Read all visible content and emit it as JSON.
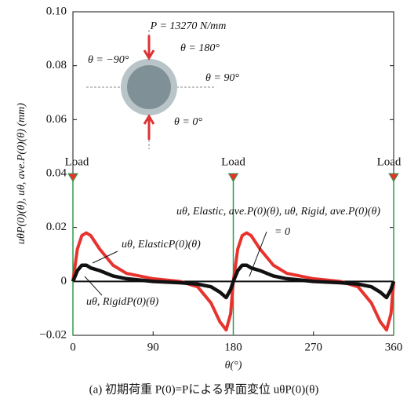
{
  "chart_data": {
    "type": "line",
    "x_label": "θ(°)",
    "y_label": "uθP(0)(θ), uθ, ave.P(0)(θ) (mm)",
    "caption": "(a) 初期荷重 P(0)=Pによる界面変位 uθP(0)(θ)",
    "xlim": [
      0,
      360
    ],
    "xticks": [
      0,
      90,
      180,
      270,
      360
    ],
    "ylim": [
      -0.02,
      0.1
    ],
    "yticks": [
      {
        "value": -0.02,
        "label": "−0.02"
      },
      0,
      0.02,
      0.04,
      0.06,
      0.08,
      {
        "value": 0.1,
        "label": "0.10"
      }
    ],
    "load_x": [
      0,
      180,
      360
    ],
    "load_labels": [
      "Load",
      "Load",
      "Load"
    ],
    "annotations": [
      "P = 13270 N/mm",
      "θ = −90°",
      "θ = 180°",
      "θ = 90°",
      "θ = 0°",
      "uθ, ElasticP(0)(θ)",
      "uθ, RigidP(0)(θ)",
      "uθ, Elastic, ave.P(0)(θ), uθ, Rigid, ave.P(0)(θ)",
      "= 0"
    ],
    "x": [
      0,
      5,
      10,
      15,
      20,
      30,
      45,
      60,
      90,
      120,
      140,
      155,
      165,
      172,
      177,
      180,
      185,
      190,
      195,
      200,
      210,
      225,
      240,
      270,
      300,
      320,
      335,
      345,
      352,
      357,
      360
    ],
    "series": [
      {
        "color": "#e8322e",
        "values": [
          0,
          0.012,
          0.017,
          0.018,
          0.017,
          0.012,
          0.006,
          0.003,
          0.001,
          0,
          -0.002,
          -0.008,
          -0.015,
          -0.018,
          -0.012,
          0,
          0.012,
          0.017,
          0.018,
          0.017,
          0.012,
          0.006,
          0.003,
          0.001,
          0,
          -0.002,
          -0.008,
          -0.015,
          -0.018,
          -0.012,
          0
        ]
      },
      {
        "color": "#111111",
        "values": [
          0,
          0.004,
          0.006,
          0.006,
          0.005,
          0.004,
          0.002,
          0.001,
          0,
          -0.0005,
          -0.001,
          -0.002,
          -0.004,
          -0.006,
          -0.003,
          0,
          0.004,
          0.006,
          0.006,
          0.005,
          0.004,
          0.002,
          0.001,
          0,
          -0.0005,
          -0.001,
          -0.002,
          -0.004,
          -0.006,
          -0.003,
          0
        ]
      }
    ]
  }
}
